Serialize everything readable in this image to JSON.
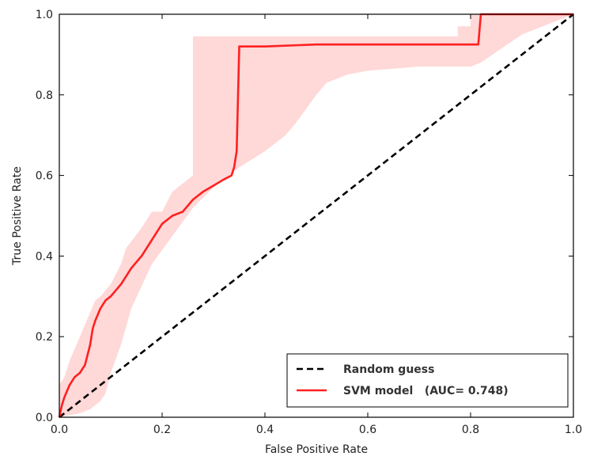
{
  "chart_data": {
    "type": "line",
    "title": "",
    "xlabel": "False Positive Rate",
    "ylabel": "True Positive Rate",
    "xlim": [
      0.0,
      1.0
    ],
    "ylim": [
      0.0,
      1.0
    ],
    "xticks": [
      "0.0",
      "0.2",
      "0.4",
      "0.6",
      "0.8",
      "1.0"
    ],
    "yticks": [
      "0.0",
      "0.2",
      "0.4",
      "0.6",
      "0.8",
      "1.0"
    ],
    "grid": false,
    "legend_position": "lower-right",
    "series": [
      {
        "name": "Random guess",
        "style": "dashed",
        "color": "#000000",
        "x": [
          0.0,
          1.0
        ],
        "y": [
          0.0,
          1.0
        ]
      },
      {
        "name": "SVM model   (AUC= 0.748)",
        "style": "solid",
        "color": "#ff2020",
        "x": [
          0.0,
          0.005,
          0.01,
          0.02,
          0.03,
          0.04,
          0.05,
          0.06,
          0.065,
          0.07,
          0.08,
          0.09,
          0.1,
          0.12,
          0.14,
          0.16,
          0.18,
          0.2,
          0.22,
          0.24,
          0.26,
          0.28,
          0.3,
          0.32,
          0.335,
          0.34,
          0.345,
          0.35,
          0.4,
          0.5,
          0.6,
          0.7,
          0.8,
          0.815,
          0.82,
          0.9,
          1.0
        ],
        "y": [
          0.0,
          0.03,
          0.05,
          0.08,
          0.1,
          0.11,
          0.13,
          0.18,
          0.22,
          0.24,
          0.27,
          0.29,
          0.3,
          0.33,
          0.37,
          0.4,
          0.44,
          0.48,
          0.5,
          0.51,
          0.54,
          0.56,
          0.575,
          0.59,
          0.6,
          0.62,
          0.66,
          0.92,
          0.92,
          0.925,
          0.925,
          0.925,
          0.925,
          0.925,
          1.0,
          1.0,
          1.0
        ]
      }
    ],
    "confidence_band": {
      "color": "#ffd8d8",
      "x_upper": [
        0.0,
        0.0,
        0.01,
        0.02,
        0.04,
        0.06,
        0.07,
        0.08,
        0.1,
        0.12,
        0.13,
        0.16,
        0.18,
        0.2,
        0.22,
        0.24,
        0.26,
        0.26,
        0.28,
        0.28,
        0.35,
        0.5,
        0.7,
        0.775,
        0.775,
        0.8,
        0.8,
        1.0
      ],
      "y_upper": [
        0.0,
        0.08,
        0.1,
        0.14,
        0.2,
        0.26,
        0.29,
        0.3,
        0.33,
        0.38,
        0.42,
        0.47,
        0.51,
        0.51,
        0.56,
        0.58,
        0.6,
        0.945,
        0.945,
        0.945,
        0.945,
        0.945,
        0.945,
        0.945,
        0.97,
        0.97,
        1.0,
        1.0
      ],
      "x_lower": [
        1.0,
        0.9,
        0.82,
        0.8,
        0.76,
        0.7,
        0.6,
        0.56,
        0.52,
        0.5,
        0.46,
        0.44,
        0.4,
        0.35,
        0.3,
        0.26,
        0.22,
        0.18,
        0.14,
        0.12,
        0.1,
        0.09,
        0.08,
        0.07,
        0.06,
        0.04,
        0.02,
        0.0
      ],
      "y_lower": [
        1.0,
        0.95,
        0.88,
        0.87,
        0.87,
        0.87,
        0.86,
        0.85,
        0.83,
        0.8,
        0.73,
        0.7,
        0.66,
        0.62,
        0.57,
        0.52,
        0.45,
        0.38,
        0.27,
        0.18,
        0.11,
        0.06,
        0.04,
        0.03,
        0.02,
        0.01,
        0.005,
        0.0
      ]
    }
  }
}
